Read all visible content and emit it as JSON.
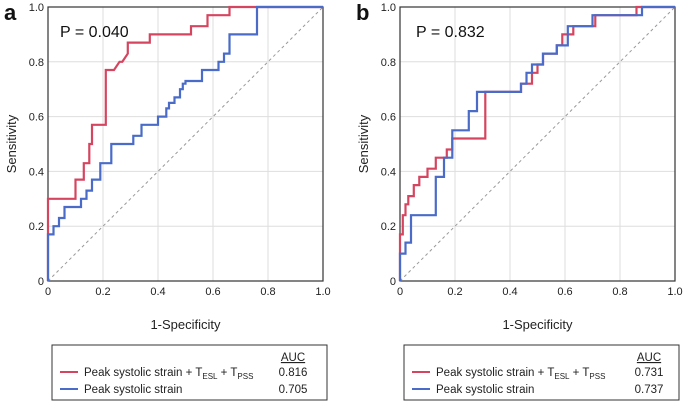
{
  "chart_data": [
    {
      "type": "line",
      "panel_label": "a",
      "annotation": "P = 0.040",
      "xlabel": "1-Specificity",
      "ylabel": "Sensitivity",
      "xlim": [
        0,
        1
      ],
      "ylim": [
        0,
        1
      ],
      "xticks": [
        "0",
        "0.2",
        "0.4",
        "0.6",
        "0.8",
        "1.0"
      ],
      "yticks": [
        "0",
        "0.2",
        "0.4",
        "0.6",
        "0.8",
        "1.0"
      ],
      "grid": true,
      "legend_header": "AUC",
      "series": [
        {
          "name": "Peak systolic strain + T_ESL + T_PSS",
          "legend_main": "Peak systolic strain + T",
          "legend_sub1": "ESL",
          "legend_mid": " + T",
          "legend_sub2": "PSS",
          "auc": "0.816",
          "color": "#d64560",
          "x": [
            0,
            0,
            0.1,
            0.1,
            0.13,
            0.13,
            0.15,
            0.15,
            0.16,
            0.16,
            0.21,
            0.21,
            0.24,
            0.26,
            0.27,
            0.29,
            0.29,
            0.37,
            0.37,
            0.52,
            0.52,
            0.58,
            0.58,
            0.66,
            0.66,
            1.0
          ],
          "y": [
            0,
            0.3,
            0.3,
            0.37,
            0.37,
            0.43,
            0.43,
            0.5,
            0.5,
            0.57,
            0.57,
            0.77,
            0.77,
            0.8,
            0.8,
            0.83,
            0.87,
            0.87,
            0.9,
            0.9,
            0.93,
            0.93,
            0.97,
            0.97,
            1.0,
            1.0
          ]
        },
        {
          "name": "Peak systolic strain",
          "legend_main": "Peak systolic strain",
          "auc": "0.705",
          "color": "#4a6cc8",
          "x": [
            0,
            0,
            0.02,
            0.02,
            0.04,
            0.04,
            0.06,
            0.06,
            0.12,
            0.12,
            0.14,
            0.14,
            0.16,
            0.16,
            0.19,
            0.19,
            0.23,
            0.23,
            0.31,
            0.31,
            0.34,
            0.34,
            0.4,
            0.4,
            0.43,
            0.43,
            0.44,
            0.44,
            0.46,
            0.46,
            0.48,
            0.48,
            0.49,
            0.49,
            0.5,
            0.5,
            0.56,
            0.56,
            0.62,
            0.62,
            0.64,
            0.64,
            0.66,
            0.66,
            0.76,
            0.76,
            1.0
          ],
          "y": [
            0,
            0.17,
            0.17,
            0.2,
            0.2,
            0.23,
            0.23,
            0.27,
            0.27,
            0.3,
            0.3,
            0.33,
            0.33,
            0.37,
            0.37,
            0.43,
            0.43,
            0.5,
            0.5,
            0.53,
            0.53,
            0.57,
            0.57,
            0.6,
            0.6,
            0.63,
            0.63,
            0.65,
            0.65,
            0.67,
            0.67,
            0.7,
            0.7,
            0.72,
            0.72,
            0.73,
            0.73,
            0.77,
            0.77,
            0.8,
            0.8,
            0.83,
            0.83,
            0.9,
            0.9,
            1.0,
            1.0
          ]
        }
      ]
    },
    {
      "type": "line",
      "panel_label": "b",
      "annotation": "P = 0.832",
      "xlabel": "1-Specificity",
      "ylabel": "Sensitivity",
      "xlim": [
        0,
        1
      ],
      "ylim": [
        0,
        1
      ],
      "xticks": [
        "0",
        "0.2",
        "0.4",
        "0.6",
        "0.8",
        "1.0"
      ],
      "yticks": [
        "0",
        "0.2",
        "0.4",
        "0.6",
        "0.8",
        "1.0"
      ],
      "grid": true,
      "legend_header": "AUC",
      "series": [
        {
          "name": "Peak systolic strain + T_ESL + T_PSS",
          "legend_main": "Peak systolic strain + T",
          "legend_sub1": "ESL",
          "legend_mid": " + T",
          "legend_sub2": "PSS",
          "auc": "0.731",
          "color": "#d64560",
          "x": [
            0,
            0,
            0.01,
            0.01,
            0.02,
            0.02,
            0.03,
            0.03,
            0.05,
            0.05,
            0.07,
            0.07,
            0.1,
            0.1,
            0.13,
            0.13,
            0.17,
            0.17,
            0.19,
            0.19,
            0.22,
            0.22,
            0.31,
            0.31,
            0.44,
            0.44,
            0.48,
            0.48,
            0.5,
            0.5,
            0.52,
            0.52,
            0.57,
            0.57,
            0.59,
            0.59,
            0.63,
            0.63,
            0.71,
            0.71,
            0.86,
            0.86,
            1.0
          ],
          "y": [
            0,
            0.17,
            0.17,
            0.24,
            0.24,
            0.28,
            0.28,
            0.31,
            0.31,
            0.35,
            0.35,
            0.38,
            0.38,
            0.41,
            0.41,
            0.45,
            0.45,
            0.48,
            0.48,
            0.52,
            0.52,
            0.52,
            0.52,
            0.69,
            0.69,
            0.72,
            0.72,
            0.76,
            0.76,
            0.79,
            0.79,
            0.83,
            0.83,
            0.86,
            0.86,
            0.9,
            0.9,
            0.93,
            0.93,
            0.97,
            0.97,
            1.0,
            1.0
          ]
        },
        {
          "name": "Peak systolic strain",
          "legend_main": "Peak systolic strain",
          "auc": "0.737",
          "color": "#4a6cc8",
          "x": [
            0,
            0,
            0.02,
            0.02,
            0.04,
            0.04,
            0.07,
            0.07,
            0.13,
            0.13,
            0.16,
            0.16,
            0.19,
            0.19,
            0.25,
            0.25,
            0.28,
            0.28,
            0.44,
            0.44,
            0.46,
            0.46,
            0.48,
            0.48,
            0.52,
            0.52,
            0.57,
            0.57,
            0.61,
            0.61,
            0.7,
            0.7,
            0.84,
            0.84,
            0.88,
            0.88,
            1.0
          ],
          "y": [
            0,
            0.1,
            0.1,
            0.14,
            0.14,
            0.24,
            0.24,
            0.24,
            0.24,
            0.38,
            0.38,
            0.45,
            0.45,
            0.55,
            0.55,
            0.62,
            0.62,
            0.69,
            0.69,
            0.72,
            0.72,
            0.76,
            0.76,
            0.79,
            0.79,
            0.83,
            0.83,
            0.86,
            0.86,
            0.93,
            0.93,
            0.97,
            0.97,
            0.97,
            0.97,
            1.0,
            1.0
          ]
        }
      ]
    }
  ]
}
